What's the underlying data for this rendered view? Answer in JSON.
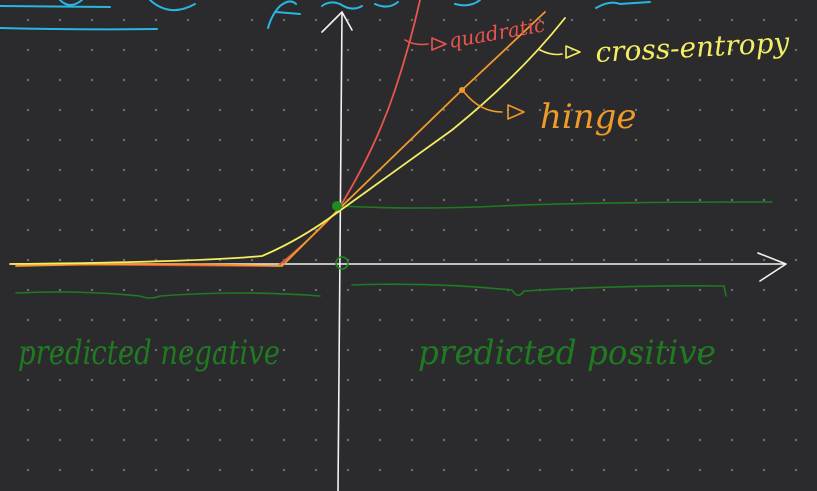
{
  "canvas": {
    "background": "#2b2b2d",
    "dot_color": "#6a6a6c"
  },
  "labels": {
    "quadratic": "quadratic",
    "cross_entropy": "cross-entropy",
    "hinge": "hinge",
    "predicted_negative": "predicted negative",
    "predicted_positive": "predicted positive"
  },
  "colors": {
    "axes": "#f2f2f2",
    "quadratic": "#e8554e",
    "hinge": "#ef9a2b",
    "cross_entropy": "#f4ee62",
    "annotation_green": "#1f7a22",
    "top_scribble": "#29b6e0"
  },
  "icons": {
    "axis_arrow": "arrow-head-icon",
    "label_pointer": "pointer-arrow-icon"
  }
}
